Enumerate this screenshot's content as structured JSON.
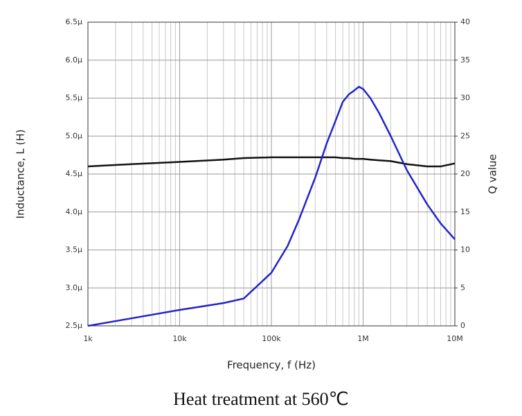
{
  "chart_data": {
    "type": "line",
    "x_label": "Frequency, f (Hz)",
    "y_label": "Inductance, L (H)",
    "y2_label": "Q value",
    "caption": "Heat treatment at 560℃",
    "x_log": true,
    "grid": true,
    "x": [
      1000,
      3000,
      10000,
      30000,
      50000,
      100000,
      150000,
      200000,
      300000,
      400000,
      500000,
      600000,
      700000,
      800000,
      900000,
      1000000,
      1200000,
      1500000,
      2000000,
      3000000,
      5000000,
      7000000,
      10000000
    ],
    "xlim": [
      1000,
      10000000
    ],
    "xticks": [
      {
        "value": 1000,
        "label": "1k"
      },
      {
        "value": 10000,
        "label": "10k"
      },
      {
        "value": 100000,
        "label": "100k"
      },
      {
        "value": 1000000,
        "label": "1M"
      },
      {
        "value": 10000000,
        "label": "10M"
      }
    ],
    "ylim": [
      2.5e-06,
      6.5e-06
    ],
    "yticks": [
      {
        "value": 2.5e-06,
        "label": "2.5µ"
      },
      {
        "value": 3e-06,
        "label": "3.0µ"
      },
      {
        "value": 3.5e-06,
        "label": "3.5µ"
      },
      {
        "value": 4e-06,
        "label": "4.0µ"
      },
      {
        "value": 4.5e-06,
        "label": "4.5µ"
      },
      {
        "value": 5e-06,
        "label": "5.0µ"
      },
      {
        "value": 5.5e-06,
        "label": "5.5µ"
      },
      {
        "value": 6e-06,
        "label": "6.0µ"
      },
      {
        "value": 6.5e-06,
        "label": "6.5µ"
      }
    ],
    "y2lim": [
      0,
      40
    ],
    "y2ticks": [
      0,
      5,
      10,
      15,
      20,
      25,
      30,
      35,
      40
    ],
    "series": [
      {
        "color": "#111111",
        "values": [
          4.6e-06,
          4.63e-06,
          4.66e-06,
          4.69e-06,
          4.71e-06,
          4.72e-06,
          4.72e-06,
          4.72e-06,
          4.72e-06,
          4.72e-06,
          4.72e-06,
          4.71e-06,
          4.71e-06,
          4.7e-06,
          4.7e-06,
          4.7e-06,
          4.69e-06,
          4.68e-06,
          4.67e-06,
          4.63e-06,
          4.6e-06,
          4.6e-06,
          4.64e-06
        ]
      },
      {
        "color": "#2323c8",
        "axis": "y2",
        "values": [
          0,
          1.0,
          2.1,
          3.0,
          3.6,
          7,
          10.5,
          14,
          19.5,
          24,
          27,
          29.5,
          30.5,
          31,
          31.5,
          31.2,
          30,
          28,
          25,
          20.5,
          16,
          13.5,
          11.4
        ]
      }
    ]
  }
}
